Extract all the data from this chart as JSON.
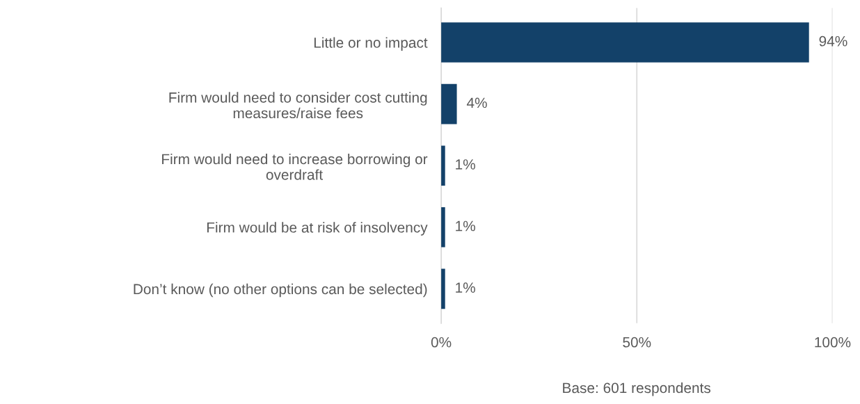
{
  "chart_data": {
    "type": "bar",
    "orientation": "horizontal",
    "categories": [
      "Little or no impact",
      "Firm would need to consider cost cutting\nmeasures/raise fees",
      "Firm would need to increase borrowing or\noverdraft",
      "Firm would be at risk of insolvency",
      "Don’t know (no other options can be selected)"
    ],
    "values": [
      94,
      4,
      1,
      1,
      1
    ],
    "value_labels": [
      "94%",
      "4%",
      "1%",
      "1%",
      "1%"
    ],
    "color": "#134169",
    "xlim": [
      0,
      100
    ],
    "xticks": [
      {
        "value": 0,
        "label": "0%"
      },
      {
        "value": 50,
        "label": "50%"
      },
      {
        "value": 100,
        "label": "100%"
      }
    ],
    "grid": "x",
    "annotations": [
      "Base: 601 respondents"
    ]
  }
}
